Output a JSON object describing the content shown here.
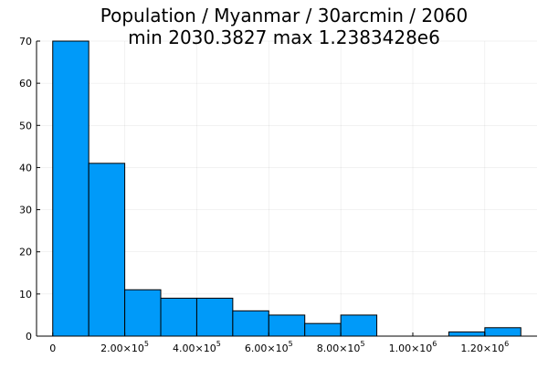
{
  "chart_data": {
    "type": "bar",
    "title_lines": [
      "Population / Myanmar / 30arcmin / 2060",
      "min 2030.3827  max 1.2383428e6"
    ],
    "xlabel": "",
    "ylabel": "",
    "bin_width": 100000,
    "bins": [
      {
        "start": 0,
        "end": 100000,
        "count": 70
      },
      {
        "start": 100000,
        "end": 200000,
        "count": 41
      },
      {
        "start": 200000,
        "end": 300000,
        "count": 11
      },
      {
        "start": 300000,
        "end": 400000,
        "count": 9
      },
      {
        "start": 400000,
        "end": 500000,
        "count": 9
      },
      {
        "start": 500000,
        "end": 600000,
        "count": 6
      },
      {
        "start": 600000,
        "end": 700000,
        "count": 5
      },
      {
        "start": 700000,
        "end": 800000,
        "count": 3
      },
      {
        "start": 800000,
        "end": 900000,
        "count": 5
      },
      {
        "start": 900000,
        "end": 1000000,
        "count": 0
      },
      {
        "start": 1000000,
        "end": 1100000,
        "count": 0
      },
      {
        "start": 1100000,
        "end": 1200000,
        "count": 1
      },
      {
        "start": 1200000,
        "end": 1300000,
        "count": 2
      }
    ],
    "xlim": [
      -45000,
      1345000
    ],
    "ylim": [
      0,
      70
    ],
    "x_ticks": [
      {
        "value": 0,
        "base": "0",
        "exp": ""
      },
      {
        "value": 200000,
        "base": "2.00×10",
        "exp": "5"
      },
      {
        "value": 400000,
        "base": "4.00×10",
        "exp": "5"
      },
      {
        "value": 600000,
        "base": "6.00×10",
        "exp": "5"
      },
      {
        "value": 800000,
        "base": "8.00×10",
        "exp": "5"
      },
      {
        "value": 1000000,
        "base": "1.00×10",
        "exp": "6"
      },
      {
        "value": 1200000,
        "base": "1.20×10",
        "exp": "6"
      }
    ],
    "y_ticks": [
      0,
      10,
      20,
      30,
      40,
      50,
      60,
      70
    ],
    "grid": true,
    "legend": "none",
    "bar_color": "#009af9",
    "edge_color": "#000000"
  }
}
